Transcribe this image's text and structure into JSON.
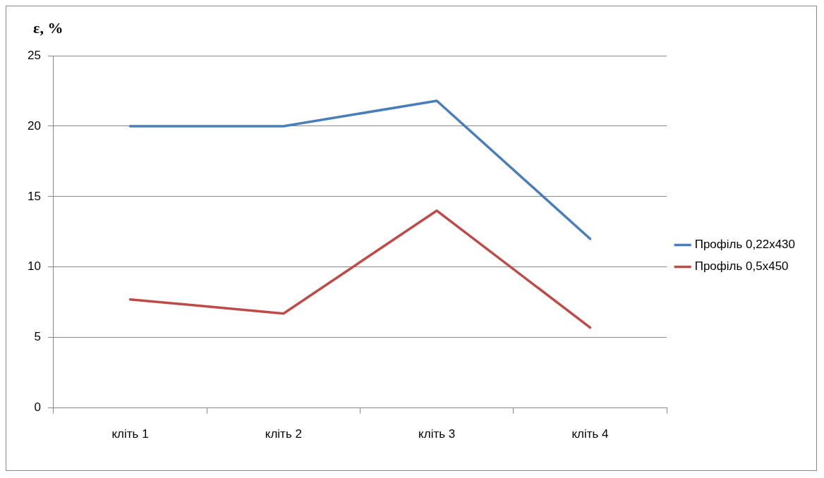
{
  "chart_data": {
    "type": "line",
    "ylabel": "ε, %",
    "categories": [
      "кліть 1",
      "кліть 2",
      "кліть 3",
      "кліть 4"
    ],
    "series": [
      {
        "name": "Профіль 0,22х430",
        "color": "#4a7ebb",
        "values": [
          20,
          20,
          21.8,
          12
        ]
      },
      {
        "name": "Профіль 0,5х450",
        "color": "#be4b48",
        "values": [
          7.7,
          6.7,
          14,
          5.7
        ]
      }
    ],
    "ylim": [
      0,
      25
    ],
    "yticks": [
      0,
      5,
      10,
      15,
      20,
      25
    ],
    "grid": "y",
    "legend": "right",
    "marker": "none",
    "line_style": "solid"
  }
}
